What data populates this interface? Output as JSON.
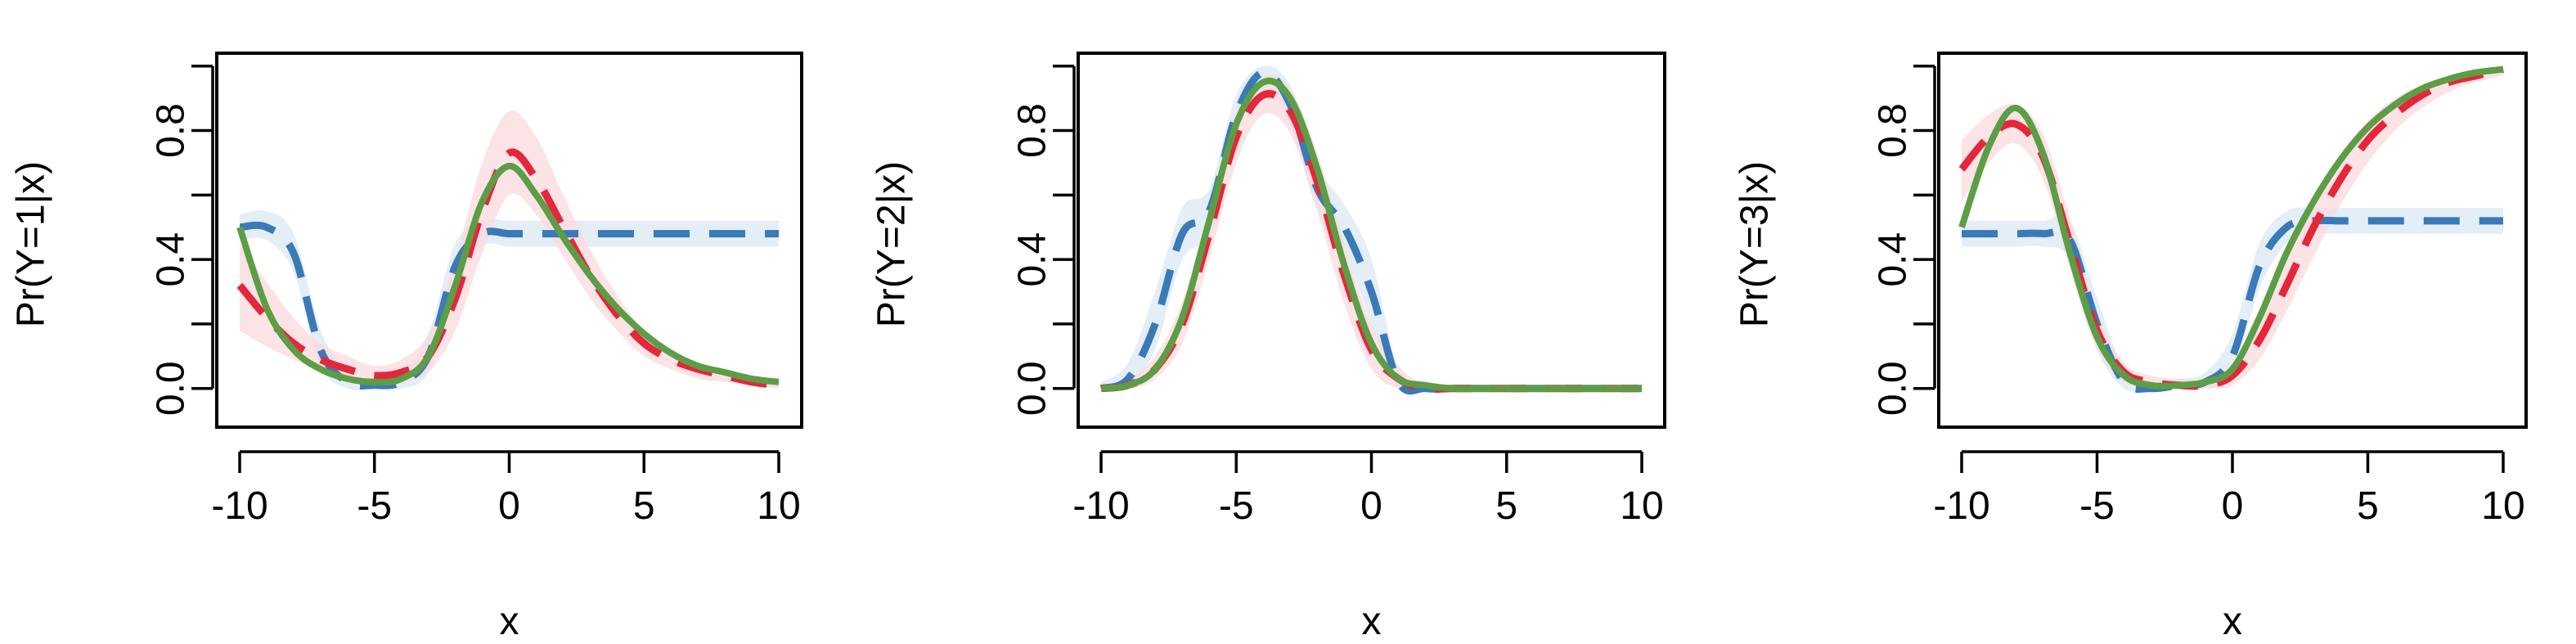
{
  "colors": {
    "series_a": "#3a7ab7",
    "series_a_band": "#dbe8f4",
    "series_b": "#e5263b",
    "series_b_band": "#fbd9dd",
    "series_c": "#5c9e45",
    "axis": "#000000"
  },
  "chart_data": [
    {
      "type": "line",
      "xlabel": "x",
      "ylabel": "Pr(Y=1|x)",
      "xlim": [
        -10,
        10
      ],
      "ylim": [
        -0.12,
        1.04
      ],
      "xticks": [
        "-10",
        "-5",
        "0",
        "5",
        "10"
      ],
      "yticks": [
        "0.0",
        "0.4",
        "0.8"
      ],
      "grid": false,
      "x": [
        -10,
        -9,
        -8,
        -7,
        -6,
        -5,
        -4,
        -3,
        -2,
        -1,
        0,
        1,
        2,
        3,
        4,
        5,
        6,
        7,
        8,
        9,
        10
      ],
      "series": [
        {
          "line_style": "dashed",
          "color_key": "series_a",
          "band_color_key": "series_a_band",
          "values": [
            0.5,
            0.5,
            0.42,
            0.12,
            0.02,
            0.01,
            0.02,
            0.1,
            0.38,
            0.48,
            0.48,
            0.48,
            0.48,
            0.48,
            0.48,
            0.48,
            0.48,
            0.48,
            0.48,
            0.48,
            0.48
          ],
          "lower": [
            0.46,
            0.46,
            0.36,
            0.07,
            0.0,
            0.0,
            0.0,
            0.05,
            0.31,
            0.44,
            0.44,
            0.44,
            0.44,
            0.44,
            0.44,
            0.44,
            0.44,
            0.44,
            0.44,
            0.44,
            0.44
          ],
          "upper": [
            0.54,
            0.55,
            0.48,
            0.18,
            0.05,
            0.03,
            0.05,
            0.17,
            0.45,
            0.52,
            0.52,
            0.52,
            0.52,
            0.52,
            0.52,
            0.52,
            0.52,
            0.52,
            0.52,
            0.52,
            0.52
          ]
        },
        {
          "line_style": "dashed",
          "color_key": "series_b",
          "band_color_key": "series_b_band",
          "values": [
            0.32,
            0.22,
            0.14,
            0.09,
            0.06,
            0.04,
            0.05,
            0.1,
            0.28,
            0.55,
            0.73,
            0.65,
            0.5,
            0.35,
            0.23,
            0.14,
            0.09,
            0.06,
            0.04,
            0.02,
            0.01
          ],
          "lower": [
            0.18,
            0.13,
            0.09,
            0.05,
            0.03,
            0.02,
            0.02,
            0.05,
            0.18,
            0.42,
            0.6,
            0.54,
            0.41,
            0.28,
            0.18,
            0.1,
            0.06,
            0.03,
            0.02,
            0.01,
            0.0
          ],
          "upper": [
            0.45,
            0.33,
            0.22,
            0.14,
            0.1,
            0.07,
            0.09,
            0.17,
            0.4,
            0.7,
            0.86,
            0.78,
            0.6,
            0.43,
            0.29,
            0.18,
            0.12,
            0.08,
            0.05,
            0.03,
            0.02
          ]
        },
        {
          "line_style": "solid",
          "color_key": "series_c",
          "values": [
            0.5,
            0.25,
            0.12,
            0.06,
            0.03,
            0.02,
            0.03,
            0.1,
            0.32,
            0.58,
            0.69,
            0.6,
            0.47,
            0.35,
            0.25,
            0.17,
            0.11,
            0.07,
            0.05,
            0.03,
            0.02
          ]
        }
      ]
    },
    {
      "type": "line",
      "xlabel": "x",
      "ylabel": "Pr(Y=2|x)",
      "xlim": [
        -10,
        10
      ],
      "ylim": [
        -0.12,
        1.04
      ],
      "xticks": [
        "-10",
        "-5",
        "0",
        "5",
        "10"
      ],
      "yticks": [
        "0.0",
        "0.4",
        "0.8"
      ],
      "grid": false,
      "x": [
        -10,
        -9,
        -8,
        -7,
        -6,
        -5,
        -4,
        -3,
        -2,
        -1,
        0,
        1,
        2,
        3,
        4,
        5,
        6,
        7,
        8,
        9,
        10
      ],
      "series": [
        {
          "line_style": "dashed",
          "color_key": "series_a",
          "band_color_key": "series_a_band",
          "values": [
            0.0,
            0.03,
            0.2,
            0.48,
            0.55,
            0.85,
            0.98,
            0.88,
            0.62,
            0.5,
            0.3,
            0.02,
            0.0,
            0.0,
            0.0,
            0.0,
            0.0,
            0.0,
            0.0,
            0.0,
            0.0
          ],
          "lower": [
            0.0,
            0.0,
            0.12,
            0.4,
            0.48,
            0.79,
            0.93,
            0.82,
            0.55,
            0.43,
            0.2,
            0.0,
            0.0,
            0.0,
            0.0,
            0.0,
            0.0,
            0.0,
            0.0,
            0.0,
            0.0
          ],
          "upper": [
            0.02,
            0.08,
            0.3,
            0.56,
            0.62,
            0.91,
            1.0,
            0.94,
            0.69,
            0.57,
            0.4,
            0.06,
            0.01,
            0.0,
            0.0,
            0.0,
            0.0,
            0.0,
            0.0,
            0.0,
            0.0
          ]
        },
        {
          "line_style": "dashed",
          "color_key": "series_b",
          "band_color_key": "series_b_band",
          "values": [
            0.0,
            0.01,
            0.06,
            0.2,
            0.48,
            0.78,
            0.91,
            0.86,
            0.64,
            0.35,
            0.12,
            0.03,
            0.0,
            0.0,
            0.0,
            0.0,
            0.0,
            0.0,
            0.0,
            0.0,
            0.0
          ],
          "lower": [
            0.0,
            0.0,
            0.03,
            0.14,
            0.4,
            0.7,
            0.85,
            0.79,
            0.55,
            0.26,
            0.06,
            0.0,
            0.0,
            0.0,
            0.0,
            0.0,
            0.0,
            0.0,
            0.0,
            0.0,
            0.0
          ],
          "upper": [
            0.01,
            0.03,
            0.1,
            0.27,
            0.56,
            0.86,
            0.97,
            0.93,
            0.73,
            0.45,
            0.2,
            0.07,
            0.01,
            0.0,
            0.0,
            0.0,
            0.0,
            0.0,
            0.0,
            0.0,
            0.0
          ]
        },
        {
          "line_style": "solid",
          "color_key": "series_c",
          "values": [
            0.0,
            0.01,
            0.06,
            0.22,
            0.52,
            0.82,
            0.95,
            0.9,
            0.68,
            0.38,
            0.14,
            0.03,
            0.01,
            0.0,
            0.0,
            0.0,
            0.0,
            0.0,
            0.0,
            0.0,
            0.0
          ]
        }
      ]
    },
    {
      "type": "line",
      "xlabel": "x",
      "ylabel": "Pr(Y=3|x)",
      "xlim": [
        -10,
        10
      ],
      "ylim": [
        -0.12,
        1.04
      ],
      "xticks": [
        "-10",
        "-5",
        "0",
        "5",
        "10"
      ],
      "yticks": [
        "0.0",
        "0.4",
        "0.8"
      ],
      "grid": false,
      "x": [
        -10,
        -9,
        -8,
        -7,
        -6,
        -5,
        -4,
        -3,
        -2,
        -1,
        0,
        1,
        2,
        3,
        4,
        5,
        6,
        7,
        8,
        9,
        10
      ],
      "series": [
        {
          "line_style": "dashed",
          "color_key": "series_a",
          "band_color_key": "series_a_band",
          "values": [
            0.48,
            0.48,
            0.48,
            0.48,
            0.46,
            0.2,
            0.02,
            0.0,
            0.01,
            0.02,
            0.1,
            0.38,
            0.5,
            0.52,
            0.52,
            0.52,
            0.52,
            0.52,
            0.52,
            0.52,
            0.52
          ],
          "lower": [
            0.44,
            0.44,
            0.44,
            0.44,
            0.4,
            0.12,
            0.0,
            0.0,
            0.0,
            0.0,
            0.05,
            0.31,
            0.45,
            0.48,
            0.48,
            0.48,
            0.48,
            0.48,
            0.48,
            0.48,
            0.48
          ],
          "upper": [
            0.52,
            0.52,
            0.52,
            0.52,
            0.52,
            0.28,
            0.06,
            0.02,
            0.03,
            0.05,
            0.17,
            0.45,
            0.55,
            0.56,
            0.56,
            0.56,
            0.56,
            0.56,
            0.56,
            0.56,
            0.56
          ]
        },
        {
          "line_style": "dashed",
          "color_key": "series_b",
          "band_color_key": "series_b_band",
          "values": [
            0.68,
            0.78,
            0.82,
            0.72,
            0.45,
            0.18,
            0.05,
            0.02,
            0.01,
            0.01,
            0.04,
            0.15,
            0.32,
            0.5,
            0.65,
            0.77,
            0.85,
            0.91,
            0.95,
            0.97,
            0.99
          ],
          "lower": [
            0.58,
            0.7,
            0.76,
            0.65,
            0.37,
            0.12,
            0.02,
            0.0,
            0.0,
            0.0,
            0.01,
            0.09,
            0.24,
            0.41,
            0.57,
            0.7,
            0.8,
            0.87,
            0.92,
            0.95,
            0.97
          ],
          "upper": [
            0.77,
            0.85,
            0.88,
            0.79,
            0.53,
            0.24,
            0.08,
            0.04,
            0.03,
            0.03,
            0.08,
            0.22,
            0.4,
            0.58,
            0.73,
            0.83,
            0.9,
            0.94,
            0.97,
            0.99,
            1.0
          ]
        },
        {
          "line_style": "solid",
          "color_key": "series_c",
          "values": [
            0.5,
            0.75,
            0.87,
            0.73,
            0.42,
            0.16,
            0.04,
            0.01,
            0.01,
            0.02,
            0.06,
            0.22,
            0.42,
            0.58,
            0.71,
            0.81,
            0.88,
            0.93,
            0.96,
            0.98,
            0.99
          ]
        }
      ]
    }
  ]
}
